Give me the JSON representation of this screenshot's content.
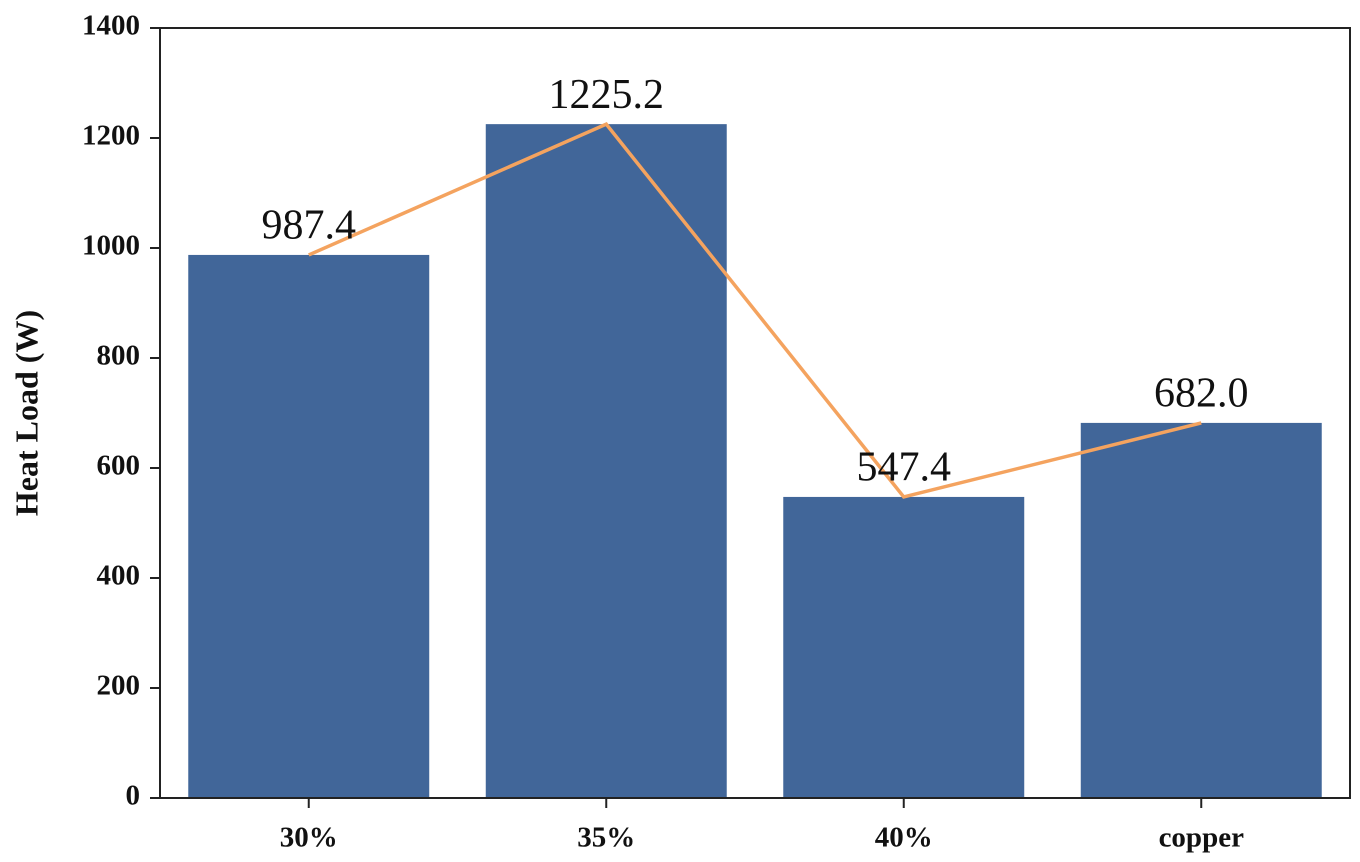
{
  "chart_data": {
    "type": "bar",
    "y_label": "Heat Load (W)",
    "categories": [
      "30%",
      "35%",
      "40%",
      "copper"
    ],
    "values": [
      987.4,
      1225.2,
      547.4,
      682
    ],
    "value_labels": [
      "987.4",
      "1225.2",
      "547.4",
      "682.0"
    ],
    "color": "#416699",
    "line_color": "#f4a35f",
    "ylim": [
      0,
      1400
    ],
    "yticks": [
      0,
      200,
      400,
      600,
      800,
      1000,
      1200,
      1400
    ],
    "grid": false
  }
}
